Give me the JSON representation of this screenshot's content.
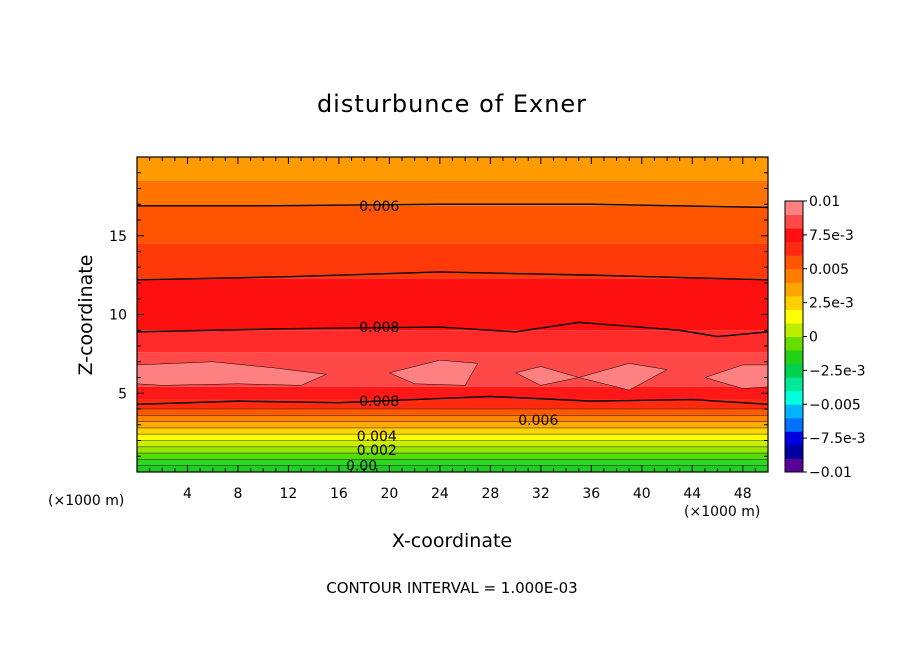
{
  "chart_data": {
    "type": "heatmap",
    "title": "disturbunce of Exner",
    "xlabel": "X-coordinate",
    "ylabel": "Z-coordinate",
    "x_unit_left": "(×1000 m)",
    "x_unit_right": "(×1000 m)",
    "footer": "CONTOUR INTERVAL = 1.000E-03",
    "xlim": [
      0,
      50
    ],
    "ylim": [
      0,
      20
    ],
    "x_ticks": [
      4,
      8,
      12,
      16,
      20,
      24,
      28,
      32,
      36,
      40,
      44,
      48
    ],
    "y_ticks": [
      5,
      10,
      15
    ],
    "x_tick_labels": [
      "4",
      "8",
      "12",
      "16",
      "20",
      "24",
      "28",
      "32",
      "36",
      "40",
      "44",
      "48"
    ],
    "y_tick_labels": [
      "5",
      "10",
      "15"
    ],
    "colorbar": {
      "range": [
        -0.01,
        0.01
      ],
      "labels": [
        "0.01",
        "7.5e-3",
        "0.005",
        "2.5e-3",
        "0",
        "−2.5e-3",
        "−0.005",
        "−7.5e-3",
        "−0.01"
      ],
      "colors": [
        "#5a0099",
        "#0000a0",
        "#0000e0",
        "#0070ff",
        "#00b4ff",
        "#00ffdd",
        "#00e89a",
        "#00d050",
        "#22d015",
        "#66dd00",
        "#bbee00",
        "#ffff00",
        "#ffd000",
        "#ffa500",
        "#ff7e00",
        "#ff5500",
        "#ff2a10",
        "#ff1010",
        "#ff4848",
        "#ff8080"
      ]
    },
    "contour_labels": [
      {
        "text": "0.006",
        "x": 19.2,
        "z": 16.9
      },
      {
        "text": "0.008",
        "x": 19.2,
        "z": 9.2
      },
      {
        "text": "0.008",
        "x": 19.2,
        "z": 4.5
      },
      {
        "text": "0.006",
        "x": 31.8,
        "z": 3.3
      },
      {
        "text": "0.004",
        "x": 19.0,
        "z": 2.3
      },
      {
        "text": "0.002",
        "x": 19.0,
        "z": 1.4
      },
      {
        "text": "0.00",
        "x": 17.8,
        "z": 0.4
      }
    ],
    "contours": [
      {
        "level": 0.006,
        "points": [
          [
            0,
            16.9
          ],
          [
            10,
            16.9
          ],
          [
            24,
            17.0
          ],
          [
            36,
            17.0
          ],
          [
            50,
            16.8
          ]
        ]
      },
      {
        "level": 0.007,
        "points": [
          [
            0,
            12.2
          ],
          [
            12,
            12.4
          ],
          [
            24,
            12.7
          ],
          [
            36,
            12.5
          ],
          [
            50,
            12.2
          ]
        ]
      },
      {
        "level": 0.008,
        "points": [
          [
            0,
            8.9
          ],
          [
            12,
            9.1
          ],
          [
            24,
            9.2
          ],
          [
            30,
            8.9
          ],
          [
            35,
            9.5
          ],
          [
            43,
            9.0
          ],
          [
            46,
            8.6
          ],
          [
            50,
            8.9
          ]
        ]
      },
      {
        "level": 0.008,
        "points": [
          [
            0,
            4.3
          ],
          [
            8,
            4.5
          ],
          [
            16,
            4.4
          ],
          [
            28,
            4.8
          ],
          [
            36,
            4.5
          ],
          [
            44,
            4.6
          ],
          [
            50,
            4.3
          ]
        ]
      }
    ],
    "high_regions": [
      {
        "points": [
          [
            0,
            6.8
          ],
          [
            6,
            7.0
          ],
          [
            11,
            6.6
          ],
          [
            15,
            6.2
          ],
          [
            13,
            5.5
          ],
          [
            8,
            5.6
          ],
          [
            2,
            5.5
          ],
          [
            0,
            5.6
          ]
        ]
      },
      {
        "points": [
          [
            20,
            6.3
          ],
          [
            24,
            7.1
          ],
          [
            27,
            6.9
          ],
          [
            26,
            5.5
          ],
          [
            22,
            5.6
          ]
        ]
      },
      {
        "points": [
          [
            30,
            6.3
          ],
          [
            32,
            6.7
          ],
          [
            35,
            6.0
          ],
          [
            32,
            5.5
          ]
        ]
      },
      {
        "points": [
          [
            35,
            6.0
          ],
          [
            39,
            6.9
          ],
          [
            42,
            6.5
          ],
          [
            39,
            5.2
          ]
        ]
      },
      {
        "points": [
          [
            45,
            6.0
          ],
          [
            48,
            6.8
          ],
          [
            50,
            6.8
          ],
          [
            50,
            5.4
          ],
          [
            48,
            5.3
          ]
        ]
      }
    ],
    "bands": [
      {
        "z0": 0.0,
        "z1": 0.4,
        "color": "#22cc22"
      },
      {
        "z0": 0.4,
        "z1": 0.8,
        "color": "#2ed820"
      },
      {
        "z0": 0.8,
        "z1": 1.2,
        "color": "#55dd00"
      },
      {
        "z0": 1.2,
        "z1": 1.6,
        "color": "#99e600"
      },
      {
        "z0": 1.6,
        "z1": 2.0,
        "color": "#ccef00"
      },
      {
        "z0": 2.0,
        "z1": 2.4,
        "color": "#ffff00"
      },
      {
        "z0": 2.4,
        "z1": 2.8,
        "color": "#ffd400"
      },
      {
        "z0": 2.8,
        "z1": 3.2,
        "color": "#ffaa00"
      },
      {
        "z0": 3.2,
        "z1": 3.6,
        "color": "#ff8400"
      },
      {
        "z0": 3.6,
        "z1": 4.0,
        "color": "#ff5a00"
      },
      {
        "z0": 4.0,
        "z1": 4.6,
        "color": "#ff2a10"
      },
      {
        "z0": 4.6,
        "z1": 5.4,
        "color": "#ff1818"
      },
      {
        "z0": 5.4,
        "z1": 7.6,
        "color": "#ff4848"
      },
      {
        "z0": 7.6,
        "z1": 9.0,
        "color": "#ff2a2a"
      },
      {
        "z0": 9.0,
        "z1": 12.3,
        "color": "#ff1010"
      },
      {
        "z0": 12.3,
        "z1": 14.5,
        "color": "#ff3a08"
      },
      {
        "z0": 14.5,
        "z1": 16.9,
        "color": "#ff5500"
      },
      {
        "z0": 16.9,
        "z1": 18.5,
        "color": "#ff7400"
      },
      {
        "z0": 18.5,
        "z1": 20.0,
        "color": "#ff9a00"
      }
    ]
  }
}
